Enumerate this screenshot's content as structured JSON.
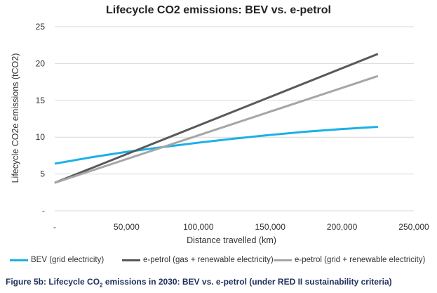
{
  "chart_data": {
    "type": "line",
    "title": "Lifecycle CO2 emissions: BEV  vs. e-petrol",
    "xlabel": "Distance travelled  (km)",
    "ylabel": "Lifecycle CO2e emissions  (tCO2)",
    "xlim": [
      0,
      250000
    ],
    "ylim": [
      0,
      25
    ],
    "x_ticks": [
      0,
      50000,
      100000,
      150000,
      200000,
      250000
    ],
    "x_tick_labels": [
      "-",
      "50,000",
      "100,000",
      "150,000",
      "200,000",
      "250,000"
    ],
    "y_ticks": [
      0,
      5,
      10,
      15,
      20,
      25
    ],
    "y_tick_labels": [
      "-",
      "5",
      "10",
      "15",
      "20",
      "25"
    ],
    "grid": "horizontal",
    "legend": "bottom",
    "series": [
      {
        "name": "BEV (grid electricity)",
        "color": "#1cb0e6",
        "x": [
          0,
          25000,
          50000,
          75000,
          100000,
          125000,
          150000,
          175000,
          200000,
          225000
        ],
        "y": [
          6.4,
          7.25,
          8.0,
          8.65,
          9.25,
          9.8,
          10.3,
          10.75,
          11.1,
          11.4
        ]
      },
      {
        "name": "e-petrol (gas + renewable electricity)",
        "color": "#595959",
        "x": [
          0,
          225000
        ],
        "y": [
          3.8,
          21.3
        ]
      },
      {
        "name": "e-petrol (grid + renewable electricity)",
        "color": "#a6a6a6",
        "x": [
          0,
          225000
        ],
        "y": [
          3.8,
          18.3
        ]
      }
    ]
  },
  "caption": {
    "prefix": "Figure 5b: Lifecycle CO",
    "sub": "2",
    "suffix": " emissions in 2030: BEV vs. e-petrol (under RED II sustainability criteria)"
  }
}
